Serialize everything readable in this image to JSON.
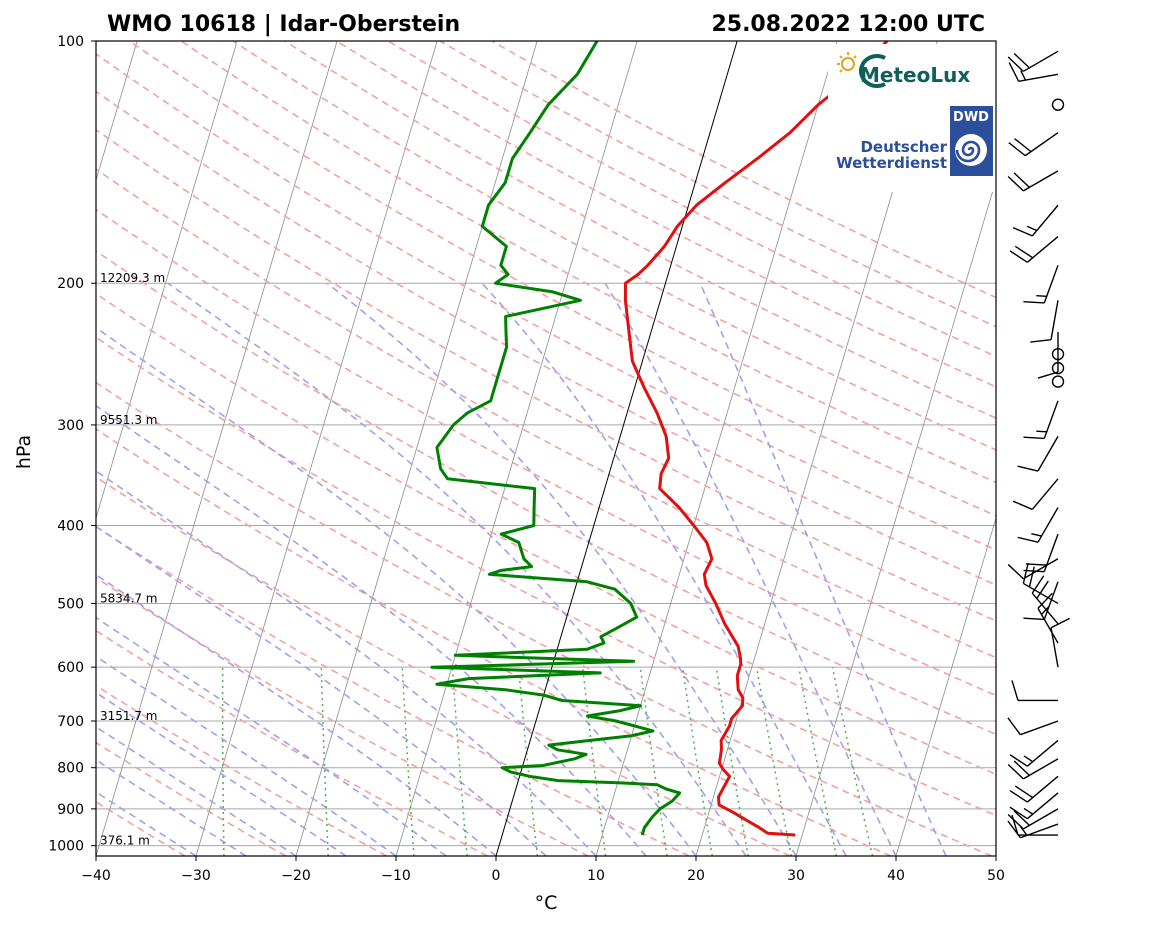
{
  "header": {
    "title_left": "WMO 10618 | Idar-Oberstein",
    "title_right": "25.08.2022 12:00 UTC"
  },
  "logos": {
    "meteolux": "MeteoLux",
    "dwd_badge": "DWD",
    "dwd_line1": "Deutscher",
    "dwd_line2": "Wetterdienst"
  },
  "colors": {
    "temperature": "#e01010",
    "dewpoint": "#008000",
    "dry_adiabat": "#f4a0a0",
    "moist_adiabat": "#a0a0f0",
    "mixing_ratio": "#50b050",
    "isotherm": "#808080",
    "isobar": "#a8a8a8",
    "zero_isotherm": "#000000"
  },
  "chart_data": {
    "type": "skew-t",
    "xlabel": "°C",
    "ylabel": "hPa",
    "xlim": [
      -40,
      50
    ],
    "ylim": [
      1030,
      100
    ],
    "y_scale": "log",
    "x_ticks": [
      "−40",
      "−30",
      "−20",
      "−10",
      "0",
      "10",
      "20",
      "30",
      "40",
      "50"
    ],
    "x_tick_values": [
      -40,
      -30,
      -20,
      -10,
      0,
      10,
      20,
      30,
      40,
      50
    ],
    "y_ticks": [
      100,
      200,
      300,
      400,
      500,
      600,
      700,
      800,
      900,
      1000
    ],
    "height_labels": [
      {
        "p": 200,
        "label": "12209.3 m"
      },
      {
        "p": 300,
        "label": "9551.3 m"
      },
      {
        "p": 500,
        "label": "5834.7 m"
      },
      {
        "p": 700,
        "label": "3151.7 m"
      },
      {
        "p": 1000,
        "label": "376.1 m"
      }
    ],
    "series": [
      {
        "key": "temperature",
        "points": [
          [
            970,
            29.3
          ],
          [
            965,
            26.5
          ],
          [
            950,
            25.5
          ],
          [
            930,
            24
          ],
          [
            910,
            22.5
          ],
          [
            890,
            20.8
          ],
          [
            870,
            20.5
          ],
          [
            840,
            20.8
          ],
          [
            820,
            21
          ],
          [
            805,
            20.2
          ],
          [
            790,
            19.6
          ],
          [
            760,
            19.4
          ],
          [
            740,
            19.1
          ],
          [
            710,
            19.5
          ],
          [
            695,
            19.5
          ],
          [
            670,
            20.2
          ],
          [
            655,
            20
          ],
          [
            640,
            19.3
          ],
          [
            615,
            18.8
          ],
          [
            595,
            18.8
          ],
          [
            585,
            18.6
          ],
          [
            565,
            18
          ],
          [
            530,
            16
          ],
          [
            500,
            14.5
          ],
          [
            475,
            13
          ],
          [
            460,
            12.5
          ],
          [
            440,
            12.8
          ],
          [
            420,
            11.8
          ],
          [
            400,
            10
          ],
          [
            380,
            8
          ],
          [
            360,
            5.5
          ],
          [
            345,
            5.2
          ],
          [
            330,
            5.5
          ],
          [
            310,
            4.6
          ],
          [
            290,
            3
          ],
          [
            270,
            1
          ],
          [
            250,
            -1
          ],
          [
            230,
            -2.2
          ],
          [
            210,
            -3.5
          ],
          [
            200,
            -4
          ],
          [
            195,
            -3
          ],
          [
            190,
            -2.3
          ],
          [
            180,
            -1.2
          ],
          [
            170,
            -0.5
          ],
          [
            160,
            0.8
          ],
          [
            150,
            3
          ],
          [
            140,
            5.5
          ],
          [
            130,
            8
          ],
          [
            120,
            10
          ],
          [
            113,
            12
          ],
          [
            106,
            13.6
          ],
          [
            100,
            15
          ]
        ]
      },
      {
        "key": "dewpoint",
        "points": [
          [
            970,
            14
          ],
          [
            950,
            14
          ],
          [
            920,
            14.5
          ],
          [
            900,
            15
          ],
          [
            880,
            16
          ],
          [
            860,
            16.5
          ],
          [
            850,
            15
          ],
          [
            840,
            14
          ],
          [
            835,
            10
          ],
          [
            830,
            4
          ],
          [
            820,
            1
          ],
          [
            810,
            -1
          ],
          [
            800,
            -2
          ],
          [
            795,
            2
          ],
          [
            780,
            5
          ],
          [
            770,
            6
          ],
          [
            760,
            3
          ],
          [
            750,
            2
          ],
          [
            740,
            6
          ],
          [
            730,
            10
          ],
          [
            720,
            12
          ],
          [
            700,
            8
          ],
          [
            690,
            5
          ],
          [
            680,
            8
          ],
          [
            670,
            10
          ],
          [
            660,
            2
          ],
          [
            650,
            0
          ],
          [
            640,
            -4
          ],
          [
            630,
            -11
          ],
          [
            620,
            -8
          ],
          [
            610,
            5
          ],
          [
            600,
            -12
          ],
          [
            590,
            8
          ],
          [
            580,
            -10
          ],
          [
            570,
            3
          ],
          [
            560,
            4.5
          ],
          [
            550,
            4
          ],
          [
            540,
            5
          ],
          [
            530,
            6
          ],
          [
            520,
            7
          ],
          [
            500,
            6
          ],
          [
            480,
            4
          ],
          [
            470,
            1
          ],
          [
            460,
            -9
          ],
          [
            455,
            -8
          ],
          [
            450,
            -5
          ],
          [
            440,
            -6
          ],
          [
            420,
            -7
          ],
          [
            410,
            -9
          ],
          [
            400,
            -6
          ],
          [
            380,
            -6.5
          ],
          [
            360,
            -7
          ],
          [
            350,
            -16
          ],
          [
            340,
            -17
          ],
          [
            320,
            -18
          ],
          [
            300,
            -17
          ],
          [
            290,
            -16
          ],
          [
            280,
            -14
          ],
          [
            260,
            -14
          ],
          [
            250,
            -14
          ],
          [
            240,
            -14
          ],
          [
            230,
            -14.5
          ],
          [
            220,
            -15
          ],
          [
            210,
            -8
          ],
          [
            205,
            -11
          ],
          [
            200,
            -17
          ],
          [
            195,
            -16
          ],
          [
            190,
            -17
          ],
          [
            180,
            -17
          ],
          [
            170,
            -20
          ],
          [
            160,
            -20
          ],
          [
            150,
            -19
          ],
          [
            140,
            -19
          ],
          [
            130,
            -18
          ],
          [
            120,
            -17
          ],
          [
            110,
            -15
          ],
          [
            100,
            -14
          ]
        ]
      }
    ],
    "wind_barbs": [
      {
        "p": 970,
        "speed_kt": 10,
        "dir": 270
      },
      {
        "p": 940,
        "speed_kt": 15,
        "dir": 250
      },
      {
        "p": 900,
        "speed_kt": 20,
        "dir": 240
      },
      {
        "p": 860,
        "speed_kt": 15,
        "dir": 230
      },
      {
        "p": 820,
        "speed_kt": 20,
        "dir": 230
      },
      {
        "p": 780,
        "speed_kt": 20,
        "dir": 240
      },
      {
        "p": 740,
        "speed_kt": 15,
        "dir": 230
      },
      {
        "p": 700,
        "speed_kt": 10,
        "dir": 250
      },
      {
        "p": 660,
        "speed_kt": 10,
        "dir": 270
      },
      {
        "p": 600,
        "speed_kt": 10,
        "dir": 350
      },
      {
        "p": 560,
        "speed_kt": 15,
        "dir": 330
      },
      {
        "p": 530,
        "speed_kt": 20,
        "dir": 320
      },
      {
        "p": 500,
        "speed_kt": 20,
        "dir": 300
      },
      {
        "p": 470,
        "speed_kt": 10,
        "dir": 200
      },
      {
        "p": 440,
        "speed_kt": 10,
        "dir": 240
      },
      {
        "p": 410,
        "speed_kt": 20,
        "dir": 200
      },
      {
        "p": 380,
        "speed_kt": 15,
        "dir": 210
      },
      {
        "p": 350,
        "speed_kt": 10,
        "dir": 220
      },
      {
        "p": 310,
        "speed_kt": 10,
        "dir": 210
      },
      {
        "p": 280,
        "speed_kt": 15,
        "dir": 200
      },
      {
        "p": 265,
        "speed_kt": 0,
        "dir": 0
      },
      {
        "p": 255,
        "speed_kt": 0,
        "dir": 0
      },
      {
        "p": 245,
        "speed_kt": 0,
        "dir": 0
      },
      {
        "p": 230,
        "speed_kt": 10,
        "dir": 180
      },
      {
        "p": 210,
        "speed_kt": 10,
        "dir": 190
      },
      {
        "p": 190,
        "speed_kt": 15,
        "dir": 200
      },
      {
        "p": 175,
        "speed_kt": 20,
        "dir": 230
      },
      {
        "p": 160,
        "speed_kt": 15,
        "dir": 220
      },
      {
        "p": 145,
        "speed_kt": 20,
        "dir": 240
      },
      {
        "p": 130,
        "speed_kt": 20,
        "dir": 235
      },
      {
        "p": 120,
        "speed_kt": 0,
        "dir": 0
      },
      {
        "p": 110,
        "speed_kt": 15,
        "dir": 260
      },
      {
        "p": 103,
        "speed_kt": 20,
        "dir": 240
      }
    ]
  }
}
